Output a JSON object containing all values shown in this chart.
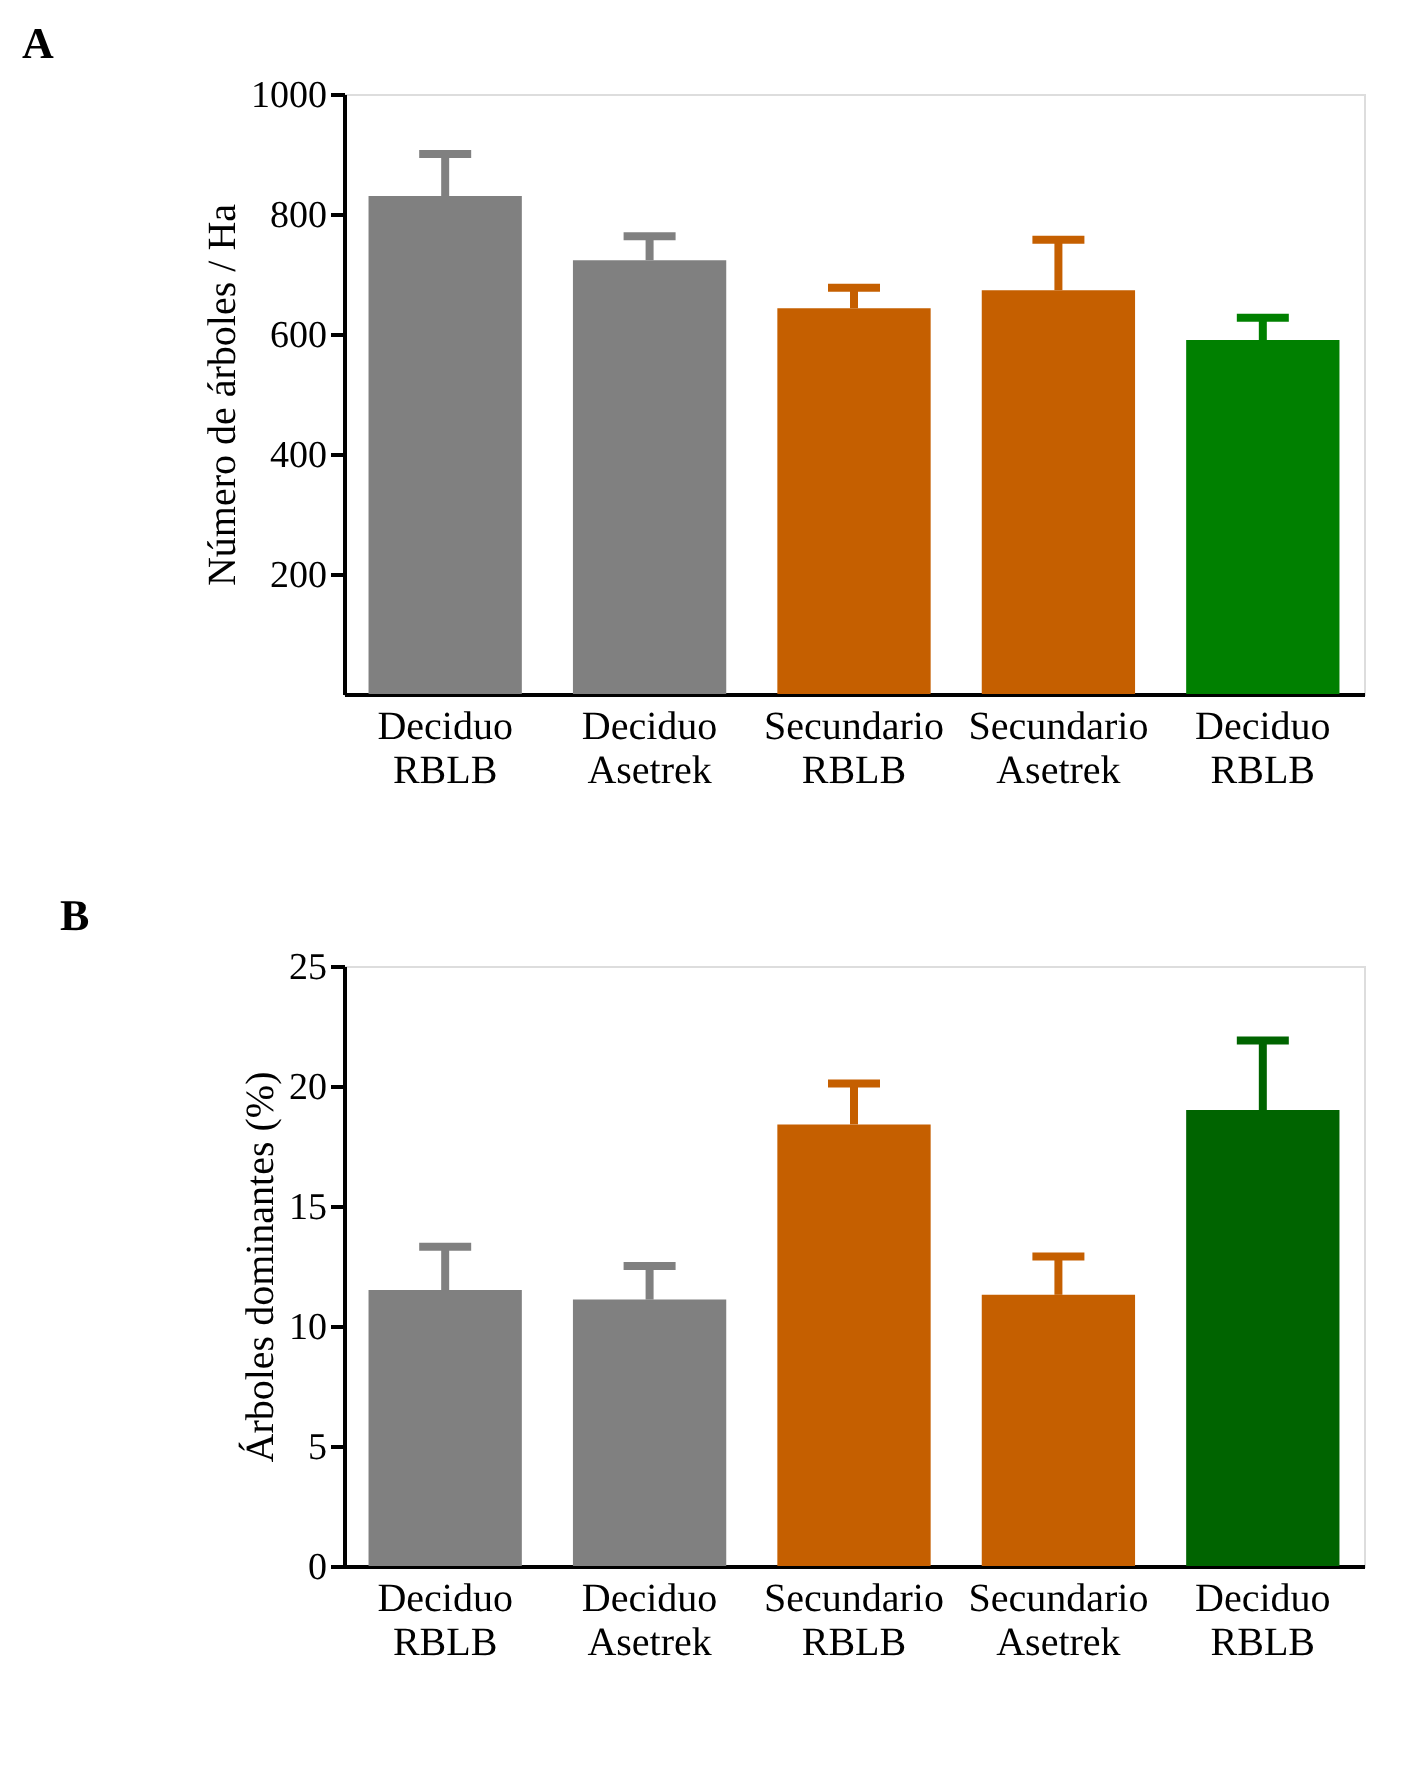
{
  "chart_data": [
    {
      "type": "bar",
      "title": "A",
      "ylabel": "Número de árboles / Ha",
      "categories": [
        "Deciduo RBLB",
        "Deciduo Asetrek",
        "Secundario RBLB",
        "Secundario Asetrek",
        "Deciduo RBLB"
      ],
      "values": [
        830,
        723,
        643,
        673,
        590
      ],
      "errors": [
        [
          830,
          900
        ],
        [
          723,
          763
        ],
        [
          643,
          677
        ],
        [
          673,
          757
        ],
        [
          590,
          627
        ]
      ],
      "colors": [
        "#808080",
        "#808080",
        "#c55f00",
        "#c55f00",
        "#008000"
      ],
      "ylim": [
        0,
        1000
      ],
      "yticks": [
        200,
        400,
        600,
        800,
        {
          "value": 1000,
          "label": "1000"
        }
      ],
      "grid": false,
      "legend": false
    },
    {
      "type": "bar",
      "title": "B",
      "ylabel": "Árboles dominantes  (%)",
      "categories": [
        "Deciduo RBLB",
        "Deciduo Asetrek",
        "Secundario RBLB",
        "Secundario Asetrek",
        "Deciduo RBLB"
      ],
      "values": [
        11.5,
        11.1,
        18.4,
        11.3,
        19.0
      ],
      "errors": [
        [
          11.5,
          13.3
        ],
        [
          11.1,
          12.5
        ],
        [
          18.4,
          20.1
        ],
        [
          11.3,
          12.9
        ],
        [
          19.0,
          21.9
        ]
      ],
      "colors": [
        "#808080",
        "#808080",
        "#c55f00",
        "#c55f00",
        "#006400"
      ],
      "ylim": [
        0,
        25
      ],
      "yticks": [
        0,
        5,
        10,
        15,
        20,
        25
      ],
      "grid": false,
      "legend": false
    }
  ]
}
